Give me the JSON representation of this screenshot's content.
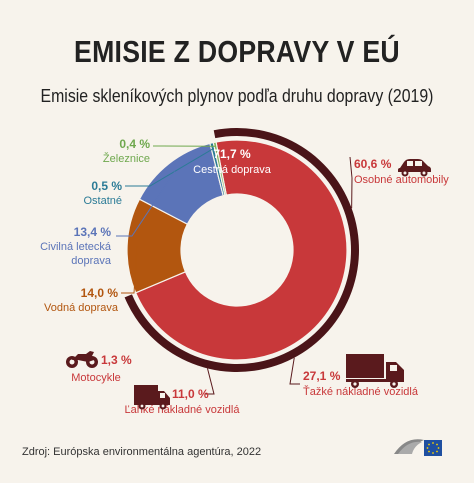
{
  "title": "EMISIE Z DOPRAVY V EÚ",
  "subtitle": "Emisie skleníkových plynov podľa druhu dopravy (2019)",
  "source": "Zdroj: Európska environmentálna agentúra, 2022",
  "colors": {
    "road": "#c8383a",
    "road_outer": "#4a1418",
    "aviation": "#5b74b8",
    "water": "#b2560f",
    "rail": "#7db35c",
    "other": "#2b7b96",
    "background": "#f7f3ec"
  },
  "chart_data": {
    "type": "pie",
    "title": "Emisie skleníkových plynov podľa druhu dopravy (2019)",
    "slices": [
      {
        "label": "Cestná doprava",
        "value": 71.7,
        "value_label": "71,7 %",
        "color": "#c8383a"
      },
      {
        "label": "Vodná doprava",
        "value": 14.0,
        "value_label": "14,0 %",
        "color": "#b2560f"
      },
      {
        "label": "Civilná letecká doprava",
        "value": 13.4,
        "value_label": "13,4 %",
        "color": "#5b74b8"
      },
      {
        "label": "Ostatné",
        "value": 0.5,
        "value_label": "0,5 %",
        "color": "#2b7b96"
      },
      {
        "label": "Železnice",
        "value": 0.4,
        "value_label": "0,4 %",
        "color": "#7db35c"
      }
    ],
    "road_breakdown": [
      {
        "label": "Osobné automobily",
        "value": 60.6,
        "value_label": "60,6 %",
        "icon": "car-icon"
      },
      {
        "label": "Ťažké nákladné vozidlá",
        "value": 27.1,
        "value_label": "27,1 %",
        "icon": "truck-icon"
      },
      {
        "label": "Ľahké nákladné vozidlá",
        "value": 11.0,
        "value_label": "11,0 %",
        "icon": "van-icon"
      },
      {
        "label": "Motocykle",
        "value": 1.3,
        "value_label": "1,3 %",
        "icon": "motorcycle-icon"
      }
    ]
  }
}
